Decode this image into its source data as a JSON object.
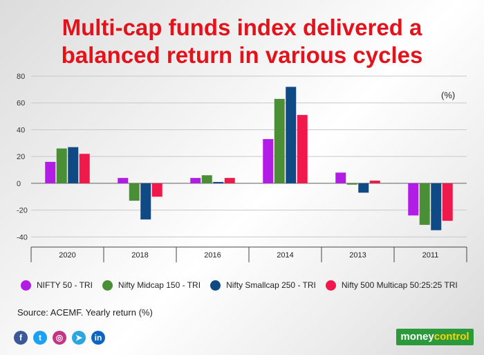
{
  "title_line1": "Multi-cap funds index delivered a",
  "title_line2": "balanced return in various cycles",
  "chart_data": {
    "type": "bar",
    "title": "Multi-cap funds index delivered a balanced return in various cycles",
    "unit_label": "(%)",
    "categories": [
      "2020",
      "2018",
      "2016",
      "2014",
      "2013",
      "2011"
    ],
    "ylim": [
      -45,
      80
    ],
    "yticks": [
      80,
      60,
      40,
      20,
      0,
      -20,
      -40
    ],
    "grid": true,
    "legend_position": "bottom",
    "series": [
      {
        "name": "NIFTY 50 - TRI",
        "color": "#b21de6",
        "values": [
          16,
          4,
          4,
          33,
          8,
          -24
        ]
      },
      {
        "name": "Nifty Midcap 150 - TRI",
        "color": "#4a8f36",
        "values": [
          26,
          -13,
          6,
          63,
          -1,
          -31
        ]
      },
      {
        "name": "Nifty Smallcap 250 - TRI",
        "color": "#0f4a85",
        "values": [
          27,
          -27,
          1,
          72,
          -7,
          -35
        ]
      },
      {
        "name": "Nifty 500 Multicap 50:25:25 TRI",
        "color": "#ef1a4b",
        "values": [
          22,
          -10,
          4,
          51,
          2,
          -28
        ]
      }
    ]
  },
  "source": "Source: ACEMF. Yearly return (%)",
  "social_icons": [
    {
      "name": "facebook-icon",
      "glyph": "f",
      "color": "#3b5998"
    },
    {
      "name": "twitter-icon",
      "glyph": "t",
      "color": "#1da1f2"
    },
    {
      "name": "instagram-icon",
      "glyph": "◎",
      "color": "#c13584"
    },
    {
      "name": "telegram-icon",
      "glyph": "➤",
      "color": "#2ca5e0"
    },
    {
      "name": "linkedin-icon",
      "glyph": "in",
      "color": "#0a66c2"
    }
  ],
  "brand": {
    "part1": "money",
    "part2": "control"
  }
}
